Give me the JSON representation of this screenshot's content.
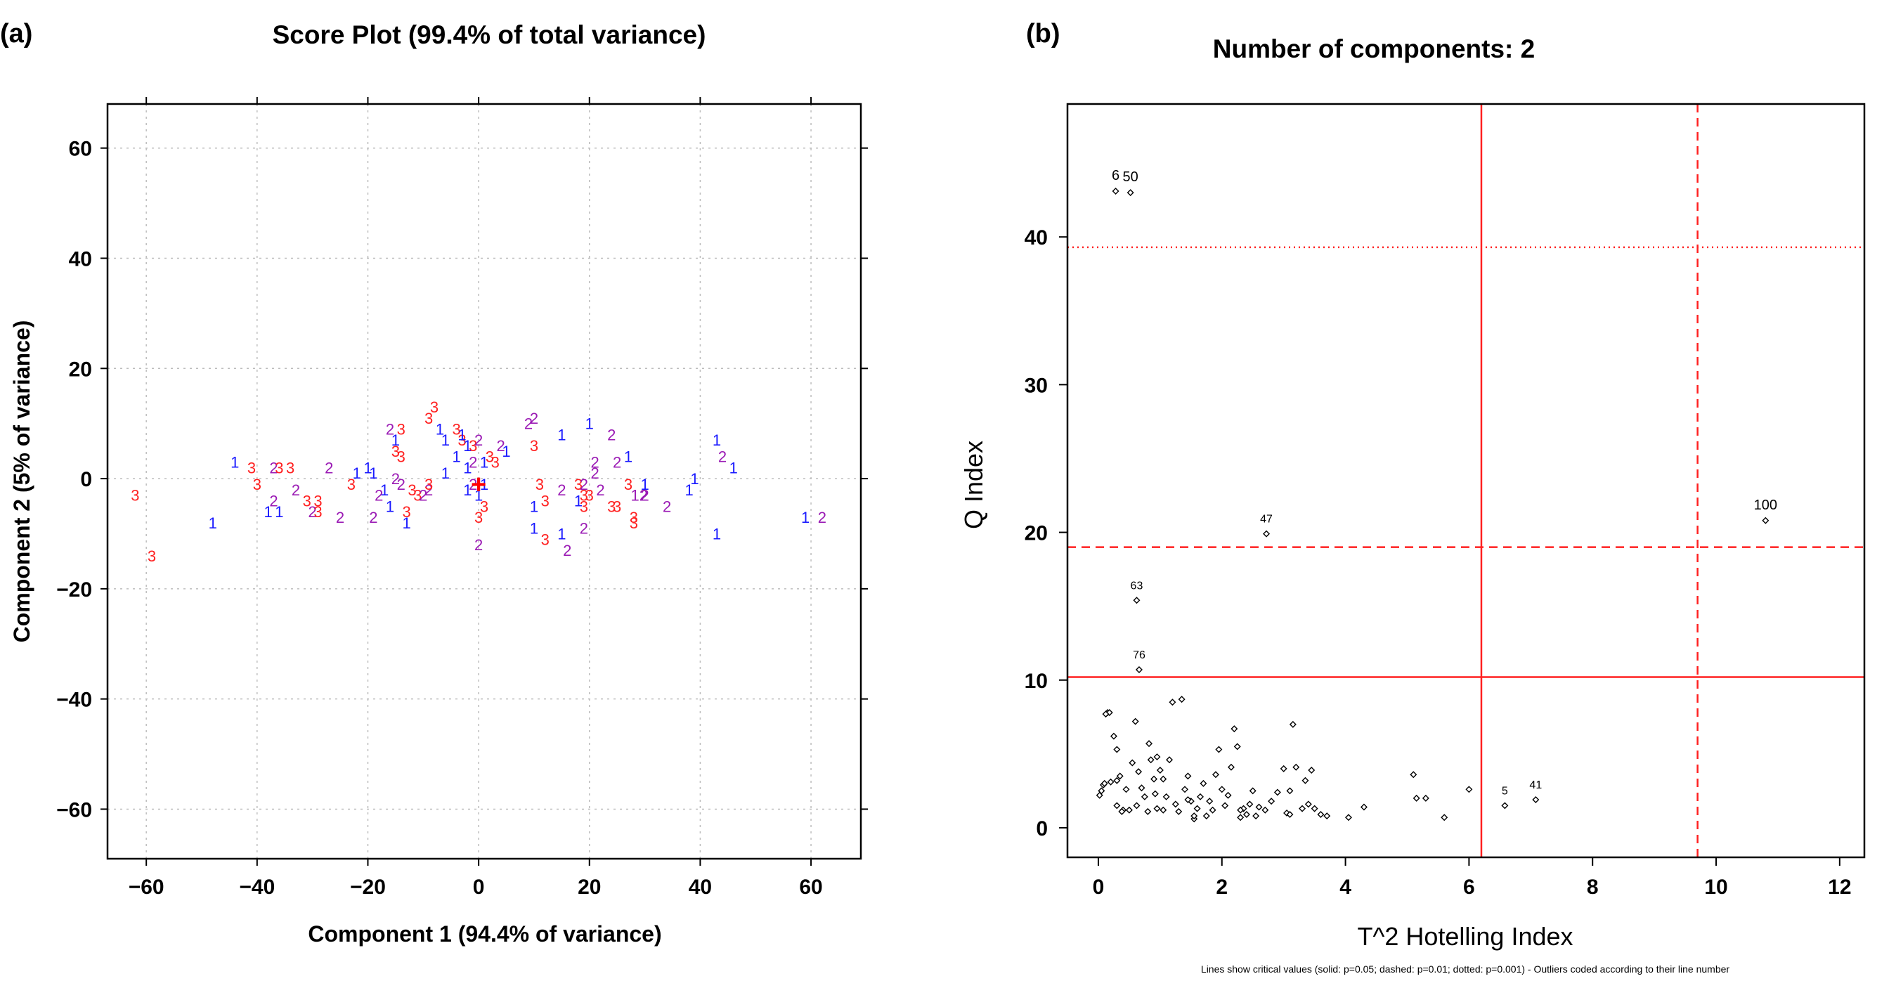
{
  "chart_data": [
    {
      "type": "scatter",
      "panel_label": "(a)",
      "title": "Score Plot (99.4% of total variance)",
      "xlabel": "Component 1 (94.4% of variance)",
      "ylabel": "Component 2 (5% of variance)",
      "xlim": [
        -67,
        69
      ],
      "ylim": [
        -69,
        68
      ],
      "xticks": [
        -60,
        -40,
        -20,
        0,
        20,
        40,
        60
      ],
      "yticks": [
        -60,
        -40,
        -20,
        0,
        20,
        40,
        60
      ],
      "x_tick_labels": [
        "−60",
        "−40",
        "−20",
        "0",
        "20",
        "40",
        "60"
      ],
      "y_tick_labels": [
        "−60",
        "−40",
        "−20",
        "0",
        "20",
        "40",
        "60"
      ],
      "grid": true,
      "label_colors": {
        "1": "#1a1aff",
        "2": "#9b1bb5",
        "3": "#ff2020"
      },
      "center_marker": {
        "label": "+",
        "x": 0,
        "y": -1,
        "color": "#ff0000"
      },
      "points": [
        {
          "x": -62,
          "y": -3,
          "label": "3"
        },
        {
          "x": -59,
          "y": -14,
          "label": "3"
        },
        {
          "x": -48,
          "y": -8,
          "label": "1"
        },
        {
          "x": -44,
          "y": 3,
          "label": "1"
        },
        {
          "x": -41,
          "y": 2,
          "label": "3"
        },
        {
          "x": -40,
          "y": -1,
          "label": "3"
        },
        {
          "x": -38,
          "y": -6,
          "label": "1"
        },
        {
          "x": -37,
          "y": -4,
          "label": "2"
        },
        {
          "x": -37,
          "y": 2,
          "label": "2"
        },
        {
          "x": -36,
          "y": 2,
          "label": "3"
        },
        {
          "x": -34,
          "y": 2,
          "label": "3"
        },
        {
          "x": -36,
          "y": -6,
          "label": "1"
        },
        {
          "x": -33,
          "y": -2,
          "label": "2"
        },
        {
          "x": -31,
          "y": -4,
          "label": "3"
        },
        {
          "x": -29,
          "y": -4,
          "label": "3"
        },
        {
          "x": -30,
          "y": -6,
          "label": "2"
        },
        {
          "x": -29,
          "y": -6,
          "label": "3"
        },
        {
          "x": -27,
          "y": 2,
          "label": "2"
        },
        {
          "x": -25,
          "y": -7,
          "label": "2"
        },
        {
          "x": -23,
          "y": -1,
          "label": "3"
        },
        {
          "x": -22,
          "y": 1,
          "label": "1"
        },
        {
          "x": -20,
          "y": 2,
          "label": "1"
        },
        {
          "x": -19,
          "y": -7,
          "label": "2"
        },
        {
          "x": -19,
          "y": 1,
          "label": "1"
        },
        {
          "x": -18,
          "y": -3,
          "label": "2"
        },
        {
          "x": -17,
          "y": -2,
          "label": "1"
        },
        {
          "x": -16,
          "y": 9,
          "label": "2"
        },
        {
          "x": -15,
          "y": 7,
          "label": "1"
        },
        {
          "x": -14,
          "y": 9,
          "label": "3"
        },
        {
          "x": -15,
          "y": 5,
          "label": "3"
        },
        {
          "x": -14,
          "y": 4,
          "label": "3"
        },
        {
          "x": -15,
          "y": 0,
          "label": "2"
        },
        {
          "x": -14,
          "y": -1,
          "label": "2"
        },
        {
          "x": -16,
          "y": -5,
          "label": "1"
        },
        {
          "x": -13,
          "y": -6,
          "label": "3"
        },
        {
          "x": -13,
          "y": -8,
          "label": "1"
        },
        {
          "x": -12,
          "y": -2,
          "label": "3"
        },
        {
          "x": -11,
          "y": -3,
          "label": "3"
        },
        {
          "x": -10,
          "y": -3,
          "label": "2"
        },
        {
          "x": -9,
          "y": -2,
          "label": "2"
        },
        {
          "x": -9,
          "y": 11,
          "label": "3"
        },
        {
          "x": -8,
          "y": 13,
          "label": "3"
        },
        {
          "x": -9,
          "y": -1,
          "label": "3"
        },
        {
          "x": -7,
          "y": 9,
          "label": "1"
        },
        {
          "x": -6,
          "y": 7,
          "label": "1"
        },
        {
          "x": -6,
          "y": 1,
          "label": "1"
        },
        {
          "x": -4,
          "y": 9,
          "label": "3"
        },
        {
          "x": -3,
          "y": 7,
          "label": "3"
        },
        {
          "x": -3,
          "y": 8,
          "label": "1"
        },
        {
          "x": -4,
          "y": 4,
          "label": "1"
        },
        {
          "x": -2,
          "y": 6,
          "label": "1"
        },
        {
          "x": -1,
          "y": 3,
          "label": "2"
        },
        {
          "x": -1,
          "y": 6,
          "label": "3"
        },
        {
          "x": 0,
          "y": 7,
          "label": "2"
        },
        {
          "x": 1,
          "y": 3,
          "label": "1"
        },
        {
          "x": -2,
          "y": 2,
          "label": "1"
        },
        {
          "x": -2,
          "y": -2,
          "label": "1"
        },
        {
          "x": -1,
          "y": -1,
          "label": "2"
        },
        {
          "x": 1,
          "y": -1,
          "label": "1"
        },
        {
          "x": 0,
          "y": -3,
          "label": "1"
        },
        {
          "x": 1,
          "y": -5,
          "label": "3"
        },
        {
          "x": 0,
          "y": -7,
          "label": "3"
        },
        {
          "x": 2,
          "y": 4,
          "label": "3"
        },
        {
          "x": 3,
          "y": 3,
          "label": "3"
        },
        {
          "x": 4,
          "y": 6,
          "label": "2"
        },
        {
          "x": 5,
          "y": 5,
          "label": "1"
        },
        {
          "x": 9,
          "y": 10,
          "label": "2"
        },
        {
          "x": 10,
          "y": 11,
          "label": "2"
        },
        {
          "x": 10,
          "y": 6,
          "label": "3"
        },
        {
          "x": 11,
          "y": -1,
          "label": "3"
        },
        {
          "x": 10,
          "y": -5,
          "label": "1"
        },
        {
          "x": 12,
          "y": -4,
          "label": "3"
        },
        {
          "x": 10,
          "y": -9,
          "label": "1"
        },
        {
          "x": 12,
          "y": -11,
          "label": "3"
        },
        {
          "x": 15,
          "y": 8,
          "label": "1"
        },
        {
          "x": 15,
          "y": -2,
          "label": "2"
        },
        {
          "x": 15,
          "y": -10,
          "label": "1"
        },
        {
          "x": 16,
          "y": -13,
          "label": "2"
        },
        {
          "x": 18,
          "y": -1,
          "label": "3"
        },
        {
          "x": 19,
          "y": -1,
          "label": "2"
        },
        {
          "x": 19,
          "y": -3,
          "label": "3"
        },
        {
          "x": 18,
          "y": -4,
          "label": "1"
        },
        {
          "x": 19,
          "y": -5,
          "label": "3"
        },
        {
          "x": 20,
          "y": 10,
          "label": "1"
        },
        {
          "x": 20,
          "y": -3,
          "label": "3"
        },
        {
          "x": 21,
          "y": 3,
          "label": "2"
        },
        {
          "x": 21,
          "y": 1,
          "label": "2"
        },
        {
          "x": 19,
          "y": -9,
          "label": "2"
        },
        {
          "x": 22,
          "y": -2,
          "label": "2"
        },
        {
          "x": 24,
          "y": -5,
          "label": "3"
        },
        {
          "x": 24,
          "y": 8,
          "label": "2"
        },
        {
          "x": 25,
          "y": 3,
          "label": "2"
        },
        {
          "x": 25,
          "y": -5,
          "label": "3"
        },
        {
          "x": 0,
          "y": -12,
          "label": "2"
        },
        {
          "x": 27,
          "y": 4,
          "label": "1"
        },
        {
          "x": 27,
          "y": -1,
          "label": "3"
        },
        {
          "x": 28,
          "y": -7,
          "label": "3"
        },
        {
          "x": 28,
          "y": -8,
          "label": "3"
        },
        {
          "x": 29,
          "y": -3,
          "label": "12"
        },
        {
          "x": 30,
          "y": -1,
          "label": "1"
        },
        {
          "x": 30,
          "y": -3,
          "label": "2"
        },
        {
          "x": 34,
          "y": -5,
          "label": "2"
        },
        {
          "x": 38,
          "y": -2,
          "label": "1"
        },
        {
          "x": 39,
          "y": 0,
          "label": "1"
        },
        {
          "x": 43,
          "y": 7,
          "label": "1"
        },
        {
          "x": 44,
          "y": 4,
          "label": "2"
        },
        {
          "x": 46,
          "y": 2,
          "label": "1"
        },
        {
          "x": 43,
          "y": -10,
          "label": "1"
        },
        {
          "x": 59,
          "y": -7,
          "label": "1"
        },
        {
          "x": 62,
          "y": -7,
          "label": "2"
        }
      ]
    },
    {
      "type": "scatter",
      "panel_label": "(b)",
      "title": "Number of components: 2",
      "xlabel": "T^2 Hotelling Index",
      "ylabel": "Q Index",
      "footnote": "Lines show critical values (solid: p=0.05; dashed: p=0.01; dotted: p=0.001) - Outliers coded according to their line number",
      "xlim": [
        -0.5,
        12.4
      ],
      "ylim": [
        -2,
        49
      ],
      "xticks": [
        0,
        2,
        4,
        6,
        8,
        10,
        12
      ],
      "yticks": [
        0,
        10,
        20,
        30,
        40
      ],
      "x_tick_labels": [
        "0",
        "2",
        "4",
        "6",
        "8",
        "10",
        "12"
      ],
      "y_tick_labels": [
        "0",
        "10",
        "20",
        "30",
        "40"
      ],
      "grid": false,
      "line_color": "#ff2020",
      "critical_lines": {
        "vertical": [
          {
            "x": 6.2,
            "style": "solid"
          },
          {
            "x": 9.7,
            "style": "dashed"
          }
        ],
        "horizontal": [
          {
            "y": 10.2,
            "style": "solid"
          },
          {
            "y": 19.0,
            "style": "dashed"
          },
          {
            "y": 39.3,
            "style": "dotted"
          }
        ]
      },
      "outliers": [
        {
          "x": 0.28,
          "y": 43.1,
          "label": "6"
        },
        {
          "x": 0.52,
          "y": 43.0,
          "label": "50"
        },
        {
          "x": 10.8,
          "y": 20.8,
          "label": "100"
        },
        {
          "x": 2.72,
          "y": 19.9,
          "label": "47"
        },
        {
          "x": 0.62,
          "y": 15.4,
          "label": "63"
        },
        {
          "x": 0.66,
          "y": 10.7,
          "label": "76"
        },
        {
          "x": 6.58,
          "y": 1.5,
          "label": "5"
        },
        {
          "x": 7.08,
          "y": 1.9,
          "label": "41"
        }
      ],
      "points": [
        [
          0.15,
          7.8
        ],
        [
          0.18,
          7.8
        ],
        [
          0.12,
          7.7
        ],
        [
          0.08,
          2.9
        ],
        [
          0.05,
          2.5
        ],
        [
          0.02,
          2.2
        ],
        [
          0.1,
          3.0
        ],
        [
          0.2,
          3.1
        ],
        [
          0.25,
          6.2
        ],
        [
          0.3,
          5.3
        ],
        [
          0.3,
          3.2
        ],
        [
          0.35,
          3.5
        ],
        [
          0.3,
          1.5
        ],
        [
          0.4,
          1.2
        ],
        [
          0.45,
          2.6
        ],
        [
          0.5,
          1.2
        ],
        [
          0.55,
          4.4
        ],
        [
          0.6,
          7.2
        ],
        [
          0.62,
          1.5
        ],
        [
          0.65,
          3.8
        ],
        [
          0.7,
          2.7
        ],
        [
          0.75,
          2.1
        ],
        [
          0.8,
          1.1
        ],
        [
          0.82,
          5.7
        ],
        [
          0.85,
          4.6
        ],
        [
          0.9,
          3.3
        ],
        [
          0.92,
          2.3
        ],
        [
          0.95,
          1.3
        ],
        [
          1.0,
          3.9
        ],
        [
          1.05,
          3.3
        ],
        [
          1.1,
          2.1
        ],
        [
          1.15,
          4.6
        ],
        [
          1.2,
          8.5
        ],
        [
          1.25,
          1.6
        ],
        [
          1.3,
          1.1
        ],
        [
          1.35,
          8.7
        ],
        [
          1.4,
          2.6
        ],
        [
          1.45,
          3.5
        ],
        [
          1.5,
          1.8
        ],
        [
          1.55,
          0.6
        ],
        [
          1.6,
          1.3
        ],
        [
          1.65,
          2.1
        ],
        [
          1.7,
          3.0
        ],
        [
          1.75,
          0.8
        ],
        [
          1.8,
          1.8
        ],
        [
          1.85,
          1.2
        ],
        [
          1.9,
          3.6
        ],
        [
          1.95,
          5.3
        ],
        [
          2.0,
          2.6
        ],
        [
          2.05,
          1.5
        ],
        [
          2.1,
          2.2
        ],
        [
          2.15,
          4.1
        ],
        [
          2.2,
          6.7
        ],
        [
          2.25,
          5.5
        ],
        [
          2.3,
          0.7
        ],
        [
          2.35,
          1.3
        ],
        [
          2.4,
          0.9
        ],
        [
          2.45,
          1.6
        ],
        [
          2.5,
          2.5
        ],
        [
          2.55,
          0.8
        ],
        [
          2.6,
          1.4
        ],
        [
          2.7,
          1.2
        ],
        [
          2.8,
          1.8
        ],
        [
          2.9,
          2.4
        ],
        [
          3.0,
          4.0
        ],
        [
          3.05,
          1.0
        ],
        [
          3.1,
          2.5
        ],
        [
          3.15,
          7.0
        ],
        [
          3.2,
          4.1
        ],
        [
          3.3,
          1.3
        ],
        [
          3.35,
          3.2
        ],
        [
          3.4,
          1.6
        ],
        [
          3.45,
          3.9
        ],
        [
          3.5,
          1.3
        ],
        [
          3.6,
          0.9
        ],
        [
          3.7,
          0.8
        ],
        [
          4.05,
          0.7
        ],
        [
          4.3,
          1.4
        ],
        [
          5.1,
          3.6
        ],
        [
          5.15,
          2.0
        ],
        [
          5.3,
          2.0
        ],
        [
          5.6,
          0.7
        ],
        [
          6.0,
          2.6
        ],
        [
          0.95,
          4.8
        ],
        [
          1.05,
          1.2
        ],
        [
          1.45,
          1.9
        ],
        [
          2.3,
          1.2
        ],
        [
          3.1,
          0.9
        ],
        [
          0.38,
          1.1
        ],
        [
          1.55,
          0.8
        ]
      ]
    }
  ]
}
